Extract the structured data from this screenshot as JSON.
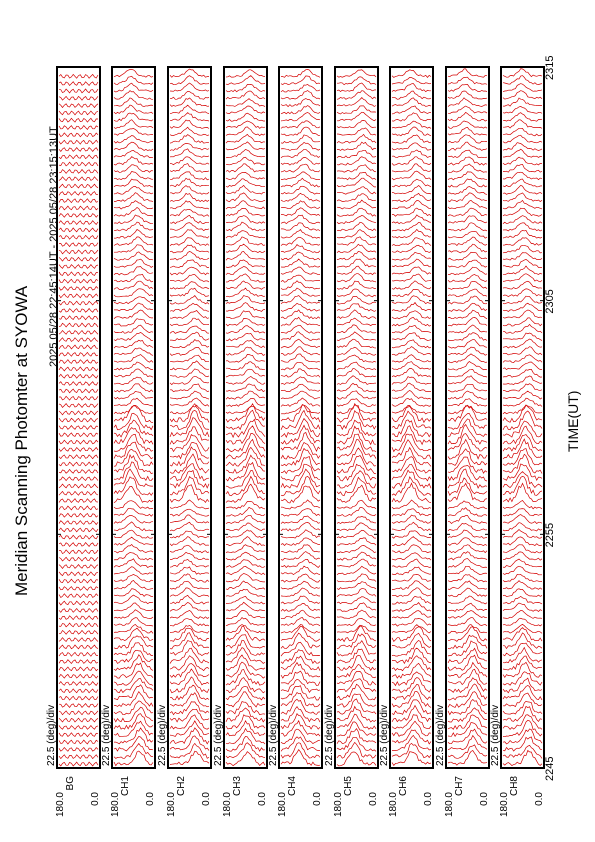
{
  "title": "Meridian Scanning Photomter at SYOWA",
  "subtitle": "2025 05/28 22:45:14UT - 2025 05/28 23:15:13UT",
  "chart_data": {
    "type": "line",
    "title": "Meridian Scanning Photomter at SYOWA",
    "subtitle": "2025 05/28 22:45:14UT - 2025 05/28 23:15:13UT",
    "xlabel": "TIME(UT)",
    "x_ticks": [
      "2245",
      "2255",
      "2305",
      "2315"
    ],
    "xlim": [
      "22:45:14",
      "23:15:13"
    ],
    "scale_label": "22.5 (deg)/div",
    "angle_range_deg": [
      0.0,
      180.0
    ],
    "series": [
      {
        "name": "BG",
        "ymax_label": "180.0",
        "ymin_label": "0.0"
      },
      {
        "name": "CH1",
        "ymax_label": "180.0",
        "ymin_label": "0.0"
      },
      {
        "name": "CH2",
        "ymax_label": "180.0",
        "ymin_label": "0.0"
      },
      {
        "name": "CH3",
        "ymax_label": "180.0",
        "ymin_label": "0.0"
      },
      {
        "name": "CH4",
        "ymax_label": "180.0",
        "ymin_label": "0.0"
      },
      {
        "name": "CH5",
        "ymax_label": "180.0",
        "ymin_label": "0.0"
      },
      {
        "name": "CH6",
        "ymax_label": "180.0",
        "ymin_label": "0.0"
      },
      {
        "name": "CH7",
        "ymax_label": "180.0",
        "ymin_label": "0.0"
      },
      {
        "name": "CH8",
        "ymax_label": "180.0",
        "ymin_label": "0.0"
      }
    ],
    "grid": false,
    "trace_color": "#d40000"
  }
}
